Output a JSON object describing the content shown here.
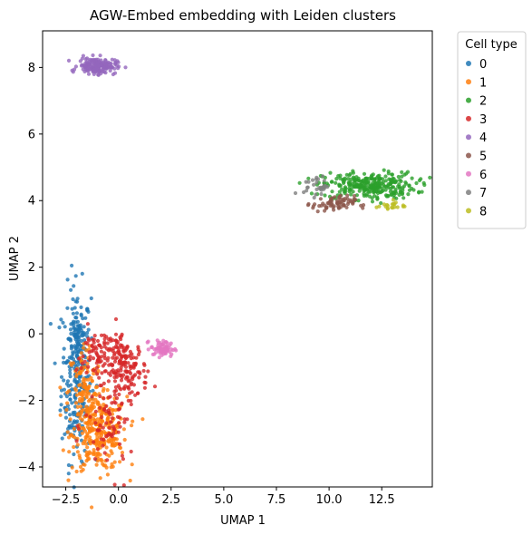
{
  "chart_data": {
    "type": "scatter",
    "title": "AGW-Embed embedding with Leiden clusters",
    "xlabel": "UMAP 1",
    "ylabel": "UMAP 2",
    "xlim": [
      -3.6,
      14.9
    ],
    "ylim": [
      -4.6,
      9.1
    ],
    "xticks": [
      -2.5,
      0.0,
      2.5,
      5.0,
      7.5,
      10.0,
      12.5
    ],
    "xtick_labels": [
      "−2.5",
      "0.0",
      "2.5",
      "5.0",
      "7.5",
      "10.0",
      "12.5"
    ],
    "yticks": [
      -4,
      -2,
      0,
      2,
      4,
      6,
      8
    ],
    "ytick_labels": [
      "−4",
      "−2",
      "0",
      "2",
      "4",
      "6",
      "8"
    ],
    "grid": false,
    "legend": {
      "title": "Cell type",
      "placement": "outside-right"
    },
    "series": [
      {
        "name": "0",
        "color": "#1f77b4",
        "clusters": [
          {
            "cx": -2.0,
            "cy": -1.2,
            "sx": 0.35,
            "sy": 1.3,
            "n": 260
          },
          {
            "cx": -1.9,
            "cy": 0.0,
            "sx": 0.15,
            "sy": 0.25,
            "n": 40
          }
        ]
      },
      {
        "name": "1",
        "color": "#ff7f0e",
        "clusters": [
          {
            "cx": -0.9,
            "cy": -3.0,
            "sx": 0.65,
            "sy": 0.55,
            "n": 280
          },
          {
            "cx": -1.6,
            "cy": -1.8,
            "sx": 0.4,
            "sy": 0.8,
            "n": 120
          }
        ]
      },
      {
        "name": "2",
        "color": "#2ca02c",
        "clusters": [
          {
            "cx": 11.9,
            "cy": 4.45,
            "sx": 1.1,
            "sy": 0.2,
            "n": 300
          }
        ]
      },
      {
        "name": "3",
        "color": "#d62728",
        "clusters": [
          {
            "cx": 0.3,
            "cy": -1.1,
            "sx": 0.55,
            "sy": 0.45,
            "n": 150
          },
          {
            "cx": -0.8,
            "cy": -0.6,
            "sx": 0.6,
            "sy": 0.4,
            "n": 90
          },
          {
            "cx": -0.4,
            "cy": -2.8,
            "sx": 0.6,
            "sy": 0.7,
            "n": 70
          }
        ]
      },
      {
        "name": "4",
        "color": "#9467bd",
        "clusters": [
          {
            "cx": -1.0,
            "cy": 8.05,
            "sx": 0.45,
            "sy": 0.12,
            "n": 180
          }
        ]
      },
      {
        "name": "5",
        "color": "#8c564b",
        "clusters": [
          {
            "cx": 10.2,
            "cy": 3.9,
            "sx": 0.5,
            "sy": 0.12,
            "n": 70
          }
        ]
      },
      {
        "name": "6",
        "color": "#e377c2",
        "clusters": [
          {
            "cx": 2.1,
            "cy": -0.45,
            "sx": 0.28,
            "sy": 0.12,
            "n": 70
          }
        ]
      },
      {
        "name": "7",
        "color": "#7f7f7f",
        "clusters": [
          {
            "cx": 9.4,
            "cy": 4.45,
            "sx": 0.3,
            "sy": 0.15,
            "n": 30
          }
        ]
      },
      {
        "name": "8",
        "color": "#bcbd22",
        "clusters": [
          {
            "cx": 12.9,
            "cy": 3.85,
            "sx": 0.35,
            "sy": 0.08,
            "n": 20
          }
        ]
      }
    ]
  }
}
